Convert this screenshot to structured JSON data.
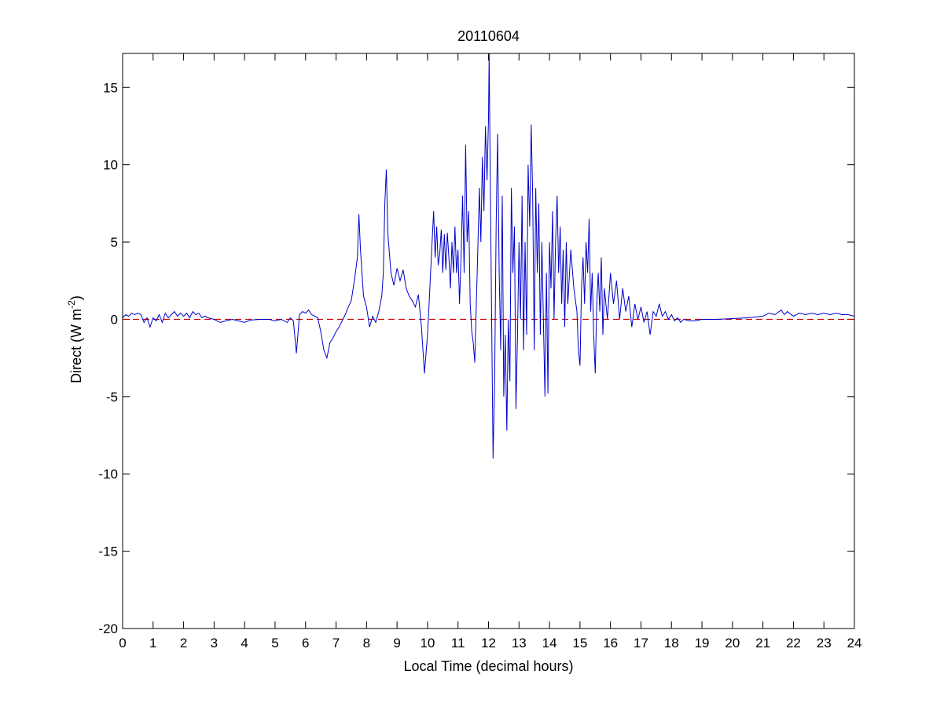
{
  "chart_data": {
    "type": "line",
    "title": "20110604",
    "xlabel": "Local Time (decimal hours)",
    "ylabel": {
      "main": "Direct (W m",
      "superscript": "-2",
      "close": ")"
    },
    "xlim": [
      0,
      24
    ],
    "ylim": [
      -20,
      17.2
    ],
    "xticks": [
      0,
      1,
      2,
      3,
      4,
      5,
      6,
      7,
      8,
      9,
      10,
      11,
      12,
      13,
      14,
      15,
      16,
      17,
      18,
      19,
      20,
      21,
      22,
      23,
      24
    ],
    "yticks": [
      -20,
      -15,
      -10,
      -5,
      0,
      5,
      10,
      15
    ],
    "grid": false,
    "reference_line": {
      "y": 0,
      "color": "#cc0000",
      "style": "dashed"
    },
    "series": [
      {
        "color": "#0000cc",
        "points": [
          [
            0.0,
            0.1
          ],
          [
            0.1,
            0.3
          ],
          [
            0.2,
            0.2
          ],
          [
            0.3,
            0.4
          ],
          [
            0.4,
            0.3
          ],
          [
            0.5,
            0.4
          ],
          [
            0.6,
            0.3
          ],
          [
            0.7,
            -0.2
          ],
          [
            0.8,
            0.1
          ],
          [
            0.9,
            -0.5
          ],
          [
            1.0,
            0.1
          ],
          [
            1.1,
            -0.1
          ],
          [
            1.2,
            0.3
          ],
          [
            1.3,
            -0.2
          ],
          [
            1.4,
            0.4
          ],
          [
            1.5,
            0.1
          ],
          [
            1.6,
            0.3
          ],
          [
            1.7,
            0.5
          ],
          [
            1.8,
            0.2
          ],
          [
            1.9,
            0.4
          ],
          [
            2.0,
            0.2
          ],
          [
            2.1,
            0.4
          ],
          [
            2.2,
            0.1
          ],
          [
            2.3,
            0.5
          ],
          [
            2.4,
            0.3
          ],
          [
            2.5,
            0.4
          ],
          [
            2.6,
            0.1
          ],
          [
            2.7,
            0.2
          ],
          [
            2.8,
            0.1
          ],
          [
            3.0,
            0.0
          ],
          [
            3.2,
            -0.2
          ],
          [
            3.4,
            -0.1
          ],
          [
            3.6,
            0.0
          ],
          [
            3.8,
            -0.1
          ],
          [
            4.0,
            -0.2
          ],
          [
            4.2,
            -0.05
          ],
          [
            4.5,
            0.0
          ],
          [
            4.8,
            0.0
          ],
          [
            5.0,
            -0.1
          ],
          [
            5.2,
            0.0
          ],
          [
            5.4,
            -0.2
          ],
          [
            5.5,
            0.1
          ],
          [
            5.6,
            -0.1
          ],
          [
            5.7,
            -2.2
          ],
          [
            5.8,
            0.3
          ],
          [
            5.9,
            0.5
          ],
          [
            6.0,
            0.4
          ],
          [
            6.1,
            0.6
          ],
          [
            6.2,
            0.3
          ],
          [
            6.4,
            0.1
          ],
          [
            6.5,
            -0.8
          ],
          [
            6.6,
            -2.0
          ],
          [
            6.7,
            -2.5
          ],
          [
            6.8,
            -1.5
          ],
          [
            6.9,
            -1.2
          ],
          [
            7.0,
            -0.8
          ],
          [
            7.1,
            -0.5
          ],
          [
            7.2,
            -0.1
          ],
          [
            7.3,
            0.3
          ],
          [
            7.4,
            0.8
          ],
          [
            7.5,
            1.2
          ],
          [
            7.6,
            2.5
          ],
          [
            7.7,
            4.0
          ],
          [
            7.75,
            6.8
          ],
          [
            7.8,
            4.5
          ],
          [
            7.9,
            1.5
          ],
          [
            8.0,
            0.8
          ],
          [
            8.1,
            -0.5
          ],
          [
            8.2,
            0.2
          ],
          [
            8.3,
            -0.2
          ],
          [
            8.4,
            0.5
          ],
          [
            8.5,
            1.5
          ],
          [
            8.55,
            3.0
          ],
          [
            8.6,
            7.5
          ],
          [
            8.65,
            9.7
          ],
          [
            8.7,
            5.5
          ],
          [
            8.8,
            3.0
          ],
          [
            8.9,
            2.2
          ],
          [
            9.0,
            3.3
          ],
          [
            9.1,
            2.5
          ],
          [
            9.2,
            3.2
          ],
          [
            9.3,
            2.0
          ],
          [
            9.4,
            1.5
          ],
          [
            9.5,
            1.2
          ],
          [
            9.6,
            0.8
          ],
          [
            9.7,
            1.6
          ],
          [
            9.75,
            0.6
          ],
          [
            9.8,
            -0.5
          ],
          [
            9.9,
            -3.5
          ],
          [
            10.0,
            -1.0
          ],
          [
            10.05,
            1.0
          ],
          [
            10.1,
            3.0
          ],
          [
            10.15,
            5.0
          ],
          [
            10.2,
            7.0
          ],
          [
            10.25,
            4.0
          ],
          [
            10.3,
            6.0
          ],
          [
            10.35,
            3.5
          ],
          [
            10.4,
            4.2
          ],
          [
            10.45,
            5.8
          ],
          [
            10.5,
            3.0
          ],
          [
            10.55,
            5.5
          ],
          [
            10.6,
            3.2
          ],
          [
            10.65,
            5.6
          ],
          [
            10.7,
            4.0
          ],
          [
            10.75,
            2.0
          ],
          [
            10.8,
            5.0
          ],
          [
            10.85,
            3.0
          ],
          [
            10.9,
            6.0
          ],
          [
            10.95,
            3.0
          ],
          [
            11.0,
            4.5
          ],
          [
            11.05,
            1.0
          ],
          [
            11.1,
            4.0
          ],
          [
            11.15,
            8.0
          ],
          [
            11.2,
            3.0
          ],
          [
            11.25,
            11.3
          ],
          [
            11.3,
            5.0
          ],
          [
            11.35,
            7.0
          ],
          [
            11.4,
            1.0
          ],
          [
            11.45,
            -0.8
          ],
          [
            11.5,
            -1.5
          ],
          [
            11.55,
            -2.8
          ],
          [
            11.6,
            1.0
          ],
          [
            11.65,
            4.5
          ],
          [
            11.7,
            8.5
          ],
          [
            11.75,
            5.0
          ],
          [
            11.8,
            10.5
          ],
          [
            11.85,
            7.0
          ],
          [
            11.9,
            12.5
          ],
          [
            11.95,
            9.0
          ],
          [
            12.0,
            13.0
          ],
          [
            12.02,
            17.2
          ],
          [
            12.05,
            11.0
          ],
          [
            12.1,
            0.5
          ],
          [
            12.15,
            -9.0
          ],
          [
            12.2,
            -4.0
          ],
          [
            12.25,
            6.0
          ],
          [
            12.3,
            12.0
          ],
          [
            12.35,
            3.0
          ],
          [
            12.4,
            -2.0
          ],
          [
            12.45,
            8.0
          ],
          [
            12.5,
            -5.0
          ],
          [
            12.55,
            -1.0
          ],
          [
            12.6,
            -7.2
          ],
          [
            12.65,
            0.0
          ],
          [
            12.7,
            -4.0
          ],
          [
            12.75,
            8.5
          ],
          [
            12.8,
            3.0
          ],
          [
            12.85,
            6.0
          ],
          [
            12.9,
            -5.8
          ],
          [
            12.95,
            -1.0
          ],
          [
            13.0,
            5.0
          ],
          [
            13.05,
            0.0
          ],
          [
            13.1,
            8.0
          ],
          [
            13.15,
            -2.0
          ],
          [
            13.2,
            5.0
          ],
          [
            13.25,
            -1.0
          ],
          [
            13.3,
            10.0
          ],
          [
            13.35,
            6.0
          ],
          [
            13.4,
            12.6
          ],
          [
            13.45,
            8.0
          ],
          [
            13.5,
            -2.0
          ],
          [
            13.55,
            8.5
          ],
          [
            13.6,
            3.0
          ],
          [
            13.65,
            7.5
          ],
          [
            13.7,
            -1.0
          ],
          [
            13.75,
            5.0
          ],
          [
            13.8,
            0.0
          ],
          [
            13.85,
            -5.0
          ],
          [
            13.9,
            3.0
          ],
          [
            13.95,
            -4.8
          ],
          [
            14.0,
            5.0
          ],
          [
            14.05,
            2.0
          ],
          [
            14.1,
            7.0
          ],
          [
            14.15,
            0.0
          ],
          [
            14.2,
            5.0
          ],
          [
            14.25,
            8.0
          ],
          [
            14.3,
            3.0
          ],
          [
            14.35,
            6.0
          ],
          [
            14.4,
            1.0
          ],
          [
            14.45,
            4.5
          ],
          [
            14.5,
            -0.5
          ],
          [
            14.55,
            5.0
          ],
          [
            14.6,
            1.0
          ],
          [
            14.7,
            4.5
          ],
          [
            14.8,
            2.0
          ],
          [
            14.9,
            0.5
          ],
          [
            14.95,
            -2.0
          ],
          [
            15.0,
            -3.0
          ],
          [
            15.05,
            2.0
          ],
          [
            15.1,
            4.0
          ],
          [
            15.15,
            1.0
          ],
          [
            15.2,
            5.0
          ],
          [
            15.25,
            3.0
          ],
          [
            15.3,
            6.5
          ],
          [
            15.35,
            0.5
          ],
          [
            15.4,
            3.0
          ],
          [
            15.45,
            -1.0
          ],
          [
            15.5,
            -3.5
          ],
          [
            15.55,
            1.0
          ],
          [
            15.6,
            3.0
          ],
          [
            15.65,
            0.5
          ],
          [
            15.7,
            4.0
          ],
          [
            15.75,
            -1.0
          ],
          [
            15.8,
            2.0
          ],
          [
            15.9,
            0.0
          ],
          [
            16.0,
            3.0
          ],
          [
            16.1,
            1.0
          ],
          [
            16.2,
            2.5
          ],
          [
            16.3,
            0.0
          ],
          [
            16.4,
            2.0
          ],
          [
            16.5,
            0.5
          ],
          [
            16.6,
            1.5
          ],
          [
            16.7,
            -0.5
          ],
          [
            16.8,
            1.0
          ],
          [
            16.9,
            0.0
          ],
          [
            17.0,
            0.8
          ],
          [
            17.1,
            -0.2
          ],
          [
            17.2,
            0.5
          ],
          [
            17.3,
            -1.0
          ],
          [
            17.4,
            0.5
          ],
          [
            17.5,
            0.2
          ],
          [
            17.6,
            1.0
          ],
          [
            17.7,
            0.2
          ],
          [
            17.8,
            0.5
          ],
          [
            17.9,
            0.0
          ],
          [
            18.0,
            0.3
          ],
          [
            18.1,
            -0.1
          ],
          [
            18.2,
            0.1
          ],
          [
            18.3,
            -0.2
          ],
          [
            18.4,
            0.0
          ],
          [
            18.6,
            -0.1
          ],
          [
            18.8,
            -0.1
          ],
          [
            19.0,
            0.0
          ],
          [
            19.5,
            0.0
          ],
          [
            20.0,
            0.05
          ],
          [
            20.5,
            0.1
          ],
          [
            21.0,
            0.2
          ],
          [
            21.2,
            0.4
          ],
          [
            21.4,
            0.3
          ],
          [
            21.6,
            0.6
          ],
          [
            21.7,
            0.3
          ],
          [
            21.8,
            0.5
          ],
          [
            22.0,
            0.2
          ],
          [
            22.2,
            0.4
          ],
          [
            22.4,
            0.3
          ],
          [
            22.6,
            0.4
          ],
          [
            22.8,
            0.3
          ],
          [
            23.0,
            0.4
          ],
          [
            23.2,
            0.3
          ],
          [
            23.4,
            0.4
          ],
          [
            23.6,
            0.3
          ],
          [
            23.8,
            0.3
          ],
          [
            24.0,
            0.2
          ]
        ]
      }
    ]
  }
}
